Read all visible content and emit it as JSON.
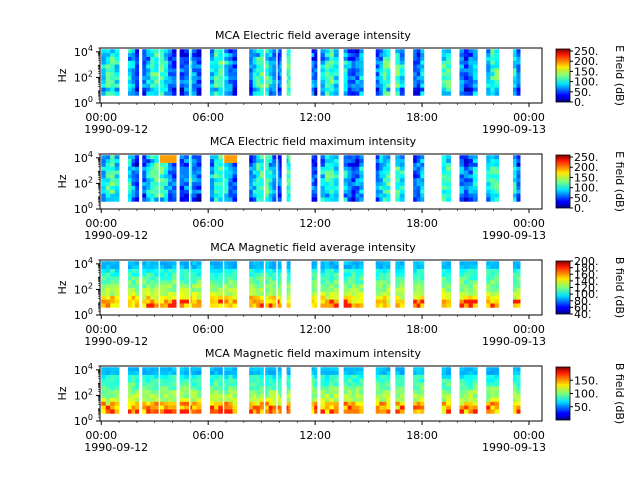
{
  "chart_data": [
    {
      "type": "heatmap",
      "title": "MCA  Electric field average intensity",
      "ylabel": "Hz",
      "y_scale": "log",
      "y_ticks": [
        "10^4",
        "10^2",
        "10^0"
      ],
      "ylim": [
        1,
        20000
      ],
      "x_ticks": [
        "00:00",
        "06:00",
        "12:00",
        "18:00",
        "00:00"
      ],
      "x_dates": [
        "1990-09-12",
        "1990-09-13"
      ],
      "colorbar_label": "E field (dB)",
      "colorbar_ticks": [
        "250.",
        "200.",
        "150.",
        "100.",
        "50.",
        "0."
      ],
      "colorbar_range": [
        0,
        260
      ],
      "colormap": "jet",
      "data_intervals_hours": [
        [
          0,
          1
        ],
        [
          1.5,
          2.1
        ],
        [
          2.3,
          3.2
        ],
        [
          3.3,
          4.2
        ],
        [
          4.4,
          4.9
        ],
        [
          5,
          5.3
        ],
        [
          5.1,
          5.6
        ],
        [
          6.1,
          6.8
        ],
        [
          6.9,
          7.6
        ],
        [
          8.3,
          9.1
        ],
        [
          9.2,
          9.8
        ],
        [
          9.9,
          10.1
        ],
        [
          10.4,
          10.6
        ],
        [
          11.8,
          12.1
        ],
        [
          12.3,
          13.3
        ],
        [
          13.6,
          14.7
        ],
        [
          15.4,
          16.2
        ],
        [
          16.5,
          17
        ],
        [
          17.5,
          18.1
        ],
        [
          19.1,
          19.6
        ],
        [
          20.1,
          21.1
        ],
        [
          21.6,
          22.3
        ],
        [
          23.1,
          23.5
        ]
      ],
      "intensity_hint": "moderate"
    },
    {
      "type": "heatmap",
      "title": "MCA  Electric field maximum intensity",
      "ylabel": "Hz",
      "y_scale": "log",
      "y_ticks": [
        "10^4",
        "10^2",
        "10^0"
      ],
      "ylim": [
        1,
        20000
      ],
      "x_ticks": [
        "00:00",
        "06:00",
        "12:00",
        "18:00",
        "00:00"
      ],
      "x_dates": [
        "1990-09-12",
        "1990-09-13"
      ],
      "colorbar_label": "E field (dB)",
      "colorbar_ticks": [
        "250.",
        "200.",
        "150.",
        "100.",
        "50.",
        "0."
      ],
      "colorbar_range": [
        0,
        260
      ],
      "colormap": "jet",
      "data_intervals_hours": [
        [
          0,
          1
        ],
        [
          1.5,
          2.1
        ],
        [
          2.3,
          3.2
        ],
        [
          3.3,
          4.2
        ],
        [
          4.4,
          4.9
        ],
        [
          5,
          5.3
        ],
        [
          5.1,
          5.6
        ],
        [
          6.1,
          6.8
        ],
        [
          6.9,
          7.6
        ],
        [
          8.3,
          9.1
        ],
        [
          9.2,
          9.8
        ],
        [
          9.9,
          10.1
        ],
        [
          10.4,
          10.6
        ],
        [
          11.8,
          12.1
        ],
        [
          12.3,
          13.3
        ],
        [
          13.6,
          14.7
        ],
        [
          15.4,
          16.2
        ],
        [
          16.5,
          17
        ],
        [
          17.5,
          18.1
        ],
        [
          19.1,
          19.6
        ],
        [
          20.1,
          21.1
        ],
        [
          21.6,
          22.3
        ],
        [
          23.1,
          23.5
        ]
      ],
      "intensity_hint": "moderate"
    },
    {
      "type": "heatmap",
      "title": "MCA  Magnetic field average intensity",
      "ylabel": "Hz",
      "y_scale": "log",
      "y_ticks": [
        "10^4",
        "10^2",
        "10^0"
      ],
      "ylim": [
        1,
        20000
      ],
      "x_ticks": [
        "00:00",
        "06:00",
        "12:00",
        "18:00",
        "00:00"
      ],
      "x_dates": [
        "1990-09-12",
        "1990-09-13"
      ],
      "colorbar_label": "B field (dB)",
      "colorbar_ticks": [
        "200.",
        "180.",
        "160.",
        "140.",
        "120.",
        "100.",
        "80.",
        "60.",
        "40."
      ],
      "colorbar_range": [
        40,
        200
      ],
      "colormap": "jet",
      "data_intervals_hours": [
        [
          0,
          1
        ],
        [
          1.5,
          2.1
        ],
        [
          2.3,
          3.2
        ],
        [
          3.3,
          4.2
        ],
        [
          4.4,
          4.9
        ],
        [
          5,
          5.3
        ],
        [
          5.1,
          5.6
        ],
        [
          6.1,
          6.8
        ],
        [
          6.9,
          7.6
        ],
        [
          8.3,
          9.1
        ],
        [
          9.2,
          9.8
        ],
        [
          9.9,
          10.1
        ],
        [
          10.4,
          10.6
        ],
        [
          11.8,
          12.1
        ],
        [
          12.3,
          13.3
        ],
        [
          13.6,
          14.7
        ],
        [
          15.4,
          16.2
        ],
        [
          16.5,
          17
        ],
        [
          17.5,
          18.1
        ],
        [
          19.1,
          19.6
        ],
        [
          20.1,
          21.1
        ],
        [
          21.6,
          22.3
        ],
        [
          23.1,
          23.5
        ]
      ],
      "intensity_hint": "high at low frequency"
    },
    {
      "type": "heatmap",
      "title": "MCA  Magnetic field maximum intensity",
      "ylabel": "Hz",
      "y_scale": "log",
      "y_ticks": [
        "10^4",
        "10^2",
        "10^0"
      ],
      "ylim": [
        1,
        20000
      ],
      "x_ticks": [
        "00:00",
        "06:00",
        "12:00",
        "18:00",
        "00:00"
      ],
      "x_dates": [
        "1990-09-12",
        "1990-09-13"
      ],
      "colorbar_label": "B field (dB)",
      "colorbar_ticks": [
        "150.",
        "100.",
        "50."
      ],
      "colorbar_range": [
        0,
        200
      ],
      "colormap": "jet",
      "data_intervals_hours": [
        [
          0,
          1
        ],
        [
          1.5,
          2.1
        ],
        [
          2.3,
          3.2
        ],
        [
          3.3,
          4.2
        ],
        [
          4.4,
          4.9
        ],
        [
          5,
          5.3
        ],
        [
          5.1,
          5.6
        ],
        [
          6.1,
          6.8
        ],
        [
          6.9,
          7.6
        ],
        [
          8.3,
          9.1
        ],
        [
          9.2,
          9.8
        ],
        [
          9.9,
          10.1
        ],
        [
          10.4,
          10.6
        ],
        [
          11.8,
          12.1
        ],
        [
          12.3,
          13.3
        ],
        [
          13.6,
          14.7
        ],
        [
          15.4,
          16.2
        ],
        [
          16.5,
          17
        ],
        [
          17.5,
          18.1
        ],
        [
          19.1,
          19.6
        ],
        [
          20.1,
          21.1
        ],
        [
          21.6,
          22.3
        ],
        [
          23.1,
          23.5
        ]
      ],
      "intensity_hint": "high at low frequency"
    }
  ]
}
